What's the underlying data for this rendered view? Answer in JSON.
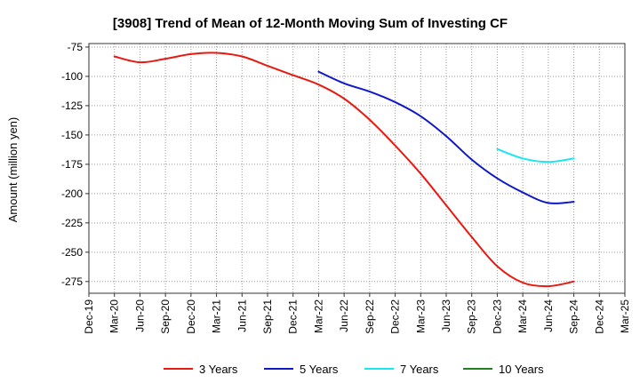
{
  "chart_data": {
    "type": "line",
    "title": "[3908]  Trend of Mean of 12-Month Moving Sum of Investing CF",
    "xlabel": "",
    "ylabel": "Amount (million yen)",
    "ylim": [
      -285,
      -72
    ],
    "yticks": [
      -75,
      -100,
      -125,
      -150,
      -175,
      -200,
      -225,
      -250,
      -275
    ],
    "grid": true,
    "legend_position": "bottom",
    "x_tick_labels": [
      "Dec-19",
      "Mar-20",
      "Jun-20",
      "Sep-20",
      "Dec-20",
      "Mar-21",
      "Jun-21",
      "Sep-21",
      "Dec-21",
      "Mar-22",
      "Jun-22",
      "Sep-22",
      "Dec-22",
      "Mar-23",
      "Jun-23",
      "Sep-23",
      "Dec-23",
      "Mar-24",
      "Jun-24",
      "Sep-24",
      "Dec-24",
      "Mar-25"
    ],
    "series": [
      {
        "name": "3 Years",
        "color": "#e8190f",
        "x": [
          "Mar-20",
          "Jun-20",
          "Sep-20",
          "Dec-20",
          "Mar-21",
          "Jun-21",
          "Sep-21",
          "Dec-21",
          "Mar-22",
          "Jun-22",
          "Sep-22",
          "Dec-22",
          "Mar-23",
          "Jun-23",
          "Sep-23",
          "Dec-23",
          "Mar-24",
          "Jun-24",
          "Sep-24"
        ],
        "values": [
          -83,
          -88,
          -85,
          -81,
          -80,
          -83,
          -91,
          -99,
          -107,
          -119,
          -137,
          -159,
          -183,
          -210,
          -237,
          -262,
          -276,
          -279,
          -275
        ]
      },
      {
        "name": "5 Years",
        "color": "#0f19c8",
        "x": [
          "Mar-22",
          "Jun-22",
          "Sep-22",
          "Dec-22",
          "Mar-23",
          "Jun-23",
          "Sep-23",
          "Dec-23",
          "Mar-24",
          "Jun-24",
          "Sep-24"
        ],
        "values": [
          -96,
          -106,
          -113,
          -122,
          -134,
          -151,
          -171,
          -187,
          -199,
          -208,
          -207
        ]
      },
      {
        "name": "7 Years",
        "color": "#19e6f0",
        "x": [
          "Dec-23",
          "Mar-24",
          "Jun-24",
          "Sep-24"
        ],
        "values": [
          -162,
          -170,
          -173,
          -170
        ]
      },
      {
        "name": "10 Years",
        "color": "#1e821e",
        "x": [],
        "values": []
      }
    ]
  }
}
